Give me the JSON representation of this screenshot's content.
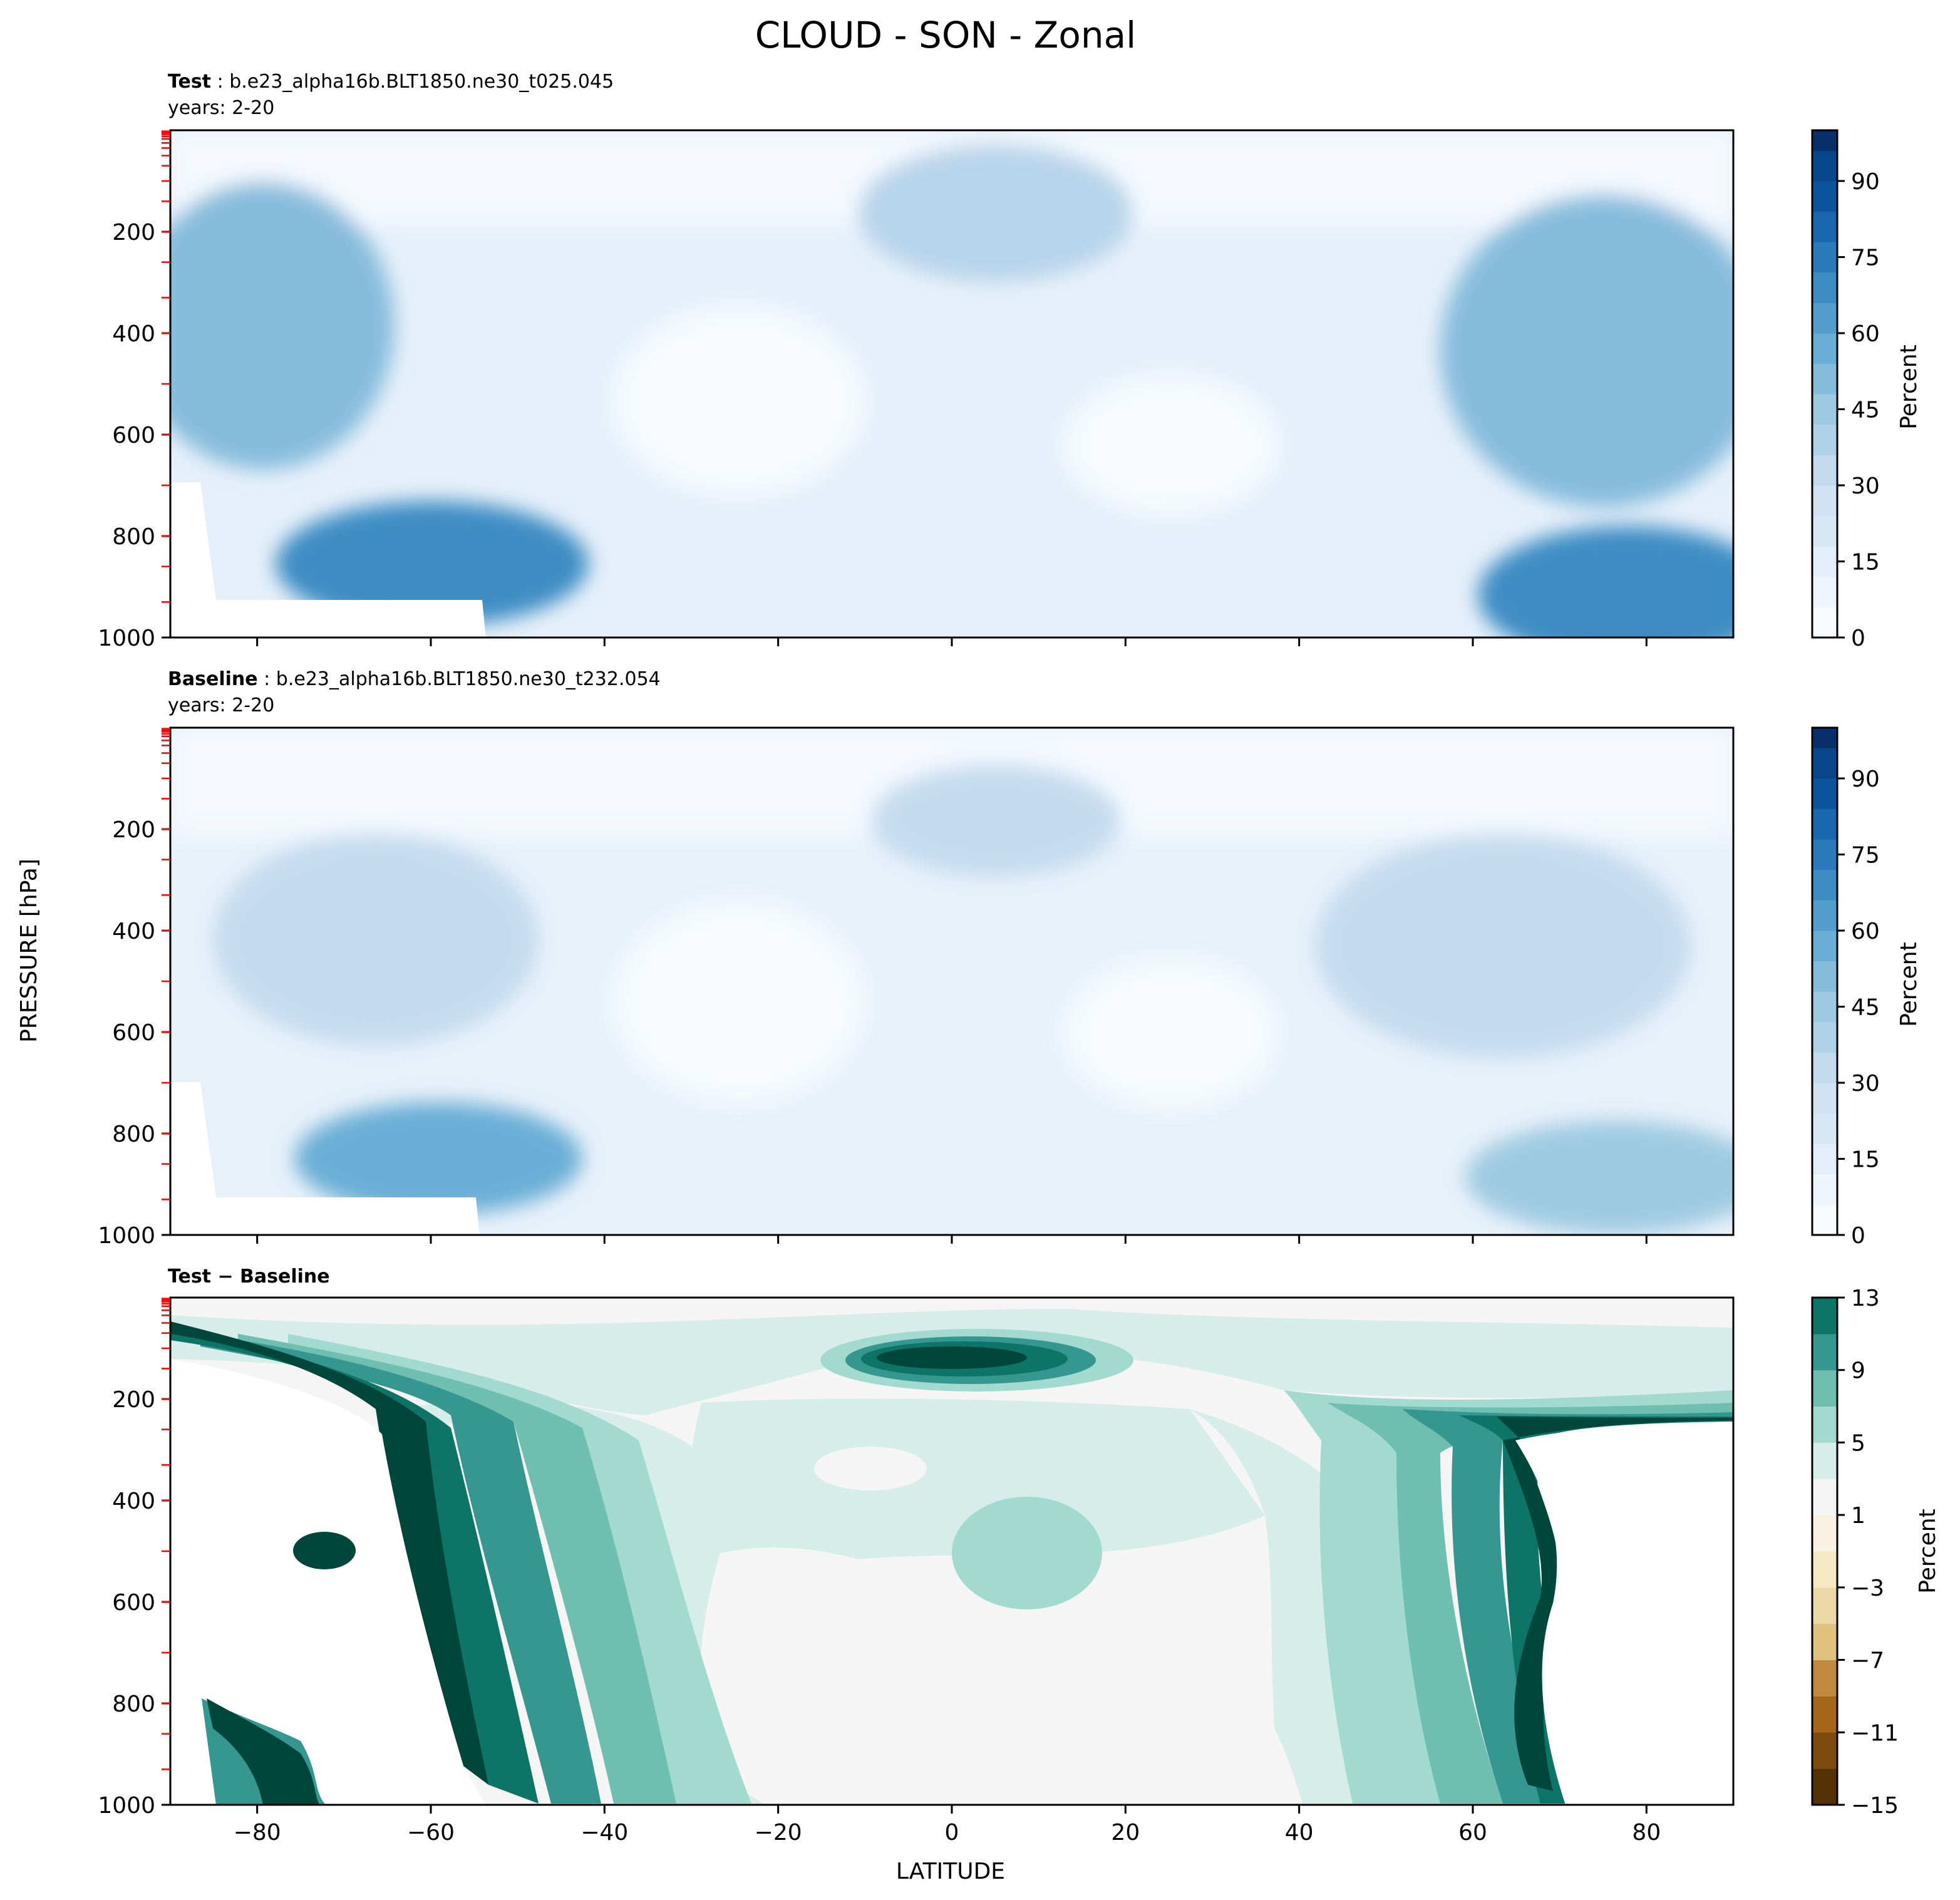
{
  "figure": {
    "title": "CLOUD - SON - Zonal",
    "ylabel_shared": "PRESSURE [hPa]",
    "xlabel": "LATITUDE"
  },
  "panels": {
    "test": {
      "label": "Test",
      "case": "b.e23_alpha16b.BLT1850.ne30_t025.045",
      "years": "years: 2-20",
      "cbar_label": "Percent"
    },
    "baseline": {
      "label": "Baseline",
      "case": "b.e23_alpha16b.BLT1850.ne30_t232.054",
      "years": "years: 2-20",
      "cbar_label": "Percent"
    },
    "diff": {
      "label": "Test − Baseline",
      "cbar_label": "Percent"
    }
  },
  "colors": {
    "blues": [
      "#f7fbff",
      "#eef5fc",
      "#e3eef9",
      "#d8e7f5",
      "#cfe1f2",
      "#c2d9ee",
      "#b0d2e8",
      "#9ecae1",
      "#86bcdc",
      "#6aaed6",
      "#539ecd",
      "#3d8dc4",
      "#2a7ab9",
      "#1967ad",
      "#0b559f",
      "#08468b",
      "#08306b"
    ],
    "diff_neg": [
      "#543005",
      "#7b4a0c",
      "#a6661a",
      "#c08a3e",
      "#dfc27d",
      "#ecd9a8",
      "#f6e8c3",
      "#f9f2e2"
    ],
    "diff_pos": [
      "#f5f5f5",
      "#d6ede9",
      "#a3dad0",
      "#6fbfb0",
      "#35978f",
      "#0f7468",
      "#01463b"
    ],
    "boundary_tick": "#ff0000"
  },
  "chart_data": [
    {
      "type": "heatmap",
      "panel": "test",
      "title": "Test : b.e23_alpha16b.BLT1850.ne30_t025.045",
      "subtitle": "years: 2-20",
      "xlabel": "",
      "ylabel": "PRESSURE [hPa]",
      "xlim": [
        -90,
        90
      ],
      "ylim": [
        1000,
        0
      ],
      "x": [
        -90,
        -85,
        -80,
        -75,
        -70,
        -65,
        -60,
        -55,
        -50,
        -45,
        -40,
        -35,
        -30,
        -25,
        -20,
        -15,
        -10,
        -5,
        0,
        5,
        10,
        15,
        20,
        25,
        30,
        35,
        40,
        45,
        50,
        55,
        60,
        65,
        70,
        75,
        80,
        85,
        90
      ],
      "y": [
        0,
        50,
        100,
        150,
        200,
        250,
        300,
        350,
        400,
        450,
        500,
        550,
        600,
        650,
        700,
        750,
        800,
        850,
        900,
        950,
        1000
      ],
      "xticks": [
        -80,
        -60,
        -40,
        -20,
        0,
        20,
        40,
        60,
        80
      ],
      "yticks": [
        200,
        400,
        600,
        800,
        1000
      ],
      "colorbar": {
        "label": "Percent",
        "ticks": [
          0,
          15,
          30,
          45,
          60,
          75,
          90
        ],
        "levels": [
          0,
          6,
          12,
          18,
          24,
          30,
          36,
          42,
          48,
          54,
          60,
          66,
          72,
          78,
          84,
          90,
          96,
          100
        ]
      },
      "features": [
        {
          "name": "upper tropical maximum",
          "lat": 5,
          "pressure": 200,
          "value": 33
        },
        {
          "name": "southern midlatitude low cloud maximum",
          "lat": -55,
          "pressure": 880,
          "value": 62
        },
        {
          "name": "arctic low cloud maximum",
          "lat": 85,
          "pressure": 975,
          "value": 78
        },
        {
          "name": "southern midlevel maximum",
          "lat": -80,
          "pressure": 380,
          "value": 42
        },
        {
          "name": "northern midlevel maximum",
          "lat": 80,
          "pressure": 400,
          "value": 43
        },
        {
          "name": "subtropical minima",
          "lat": -20,
          "pressure": 600,
          "value": 4
        }
      ]
    },
    {
      "type": "heatmap",
      "panel": "baseline",
      "title": "Baseline : b.e23_alpha16b.BLT1850.ne30_t232.054",
      "subtitle": "years: 2-20",
      "xlabel": "",
      "ylabel": "PRESSURE [hPa]",
      "xlim": [
        -90,
        90
      ],
      "ylim": [
        1000,
        0
      ],
      "xticks": [
        -80,
        -60,
        -40,
        -20,
        0,
        20,
        40,
        60,
        80
      ],
      "yticks": [
        200,
        400,
        600,
        800,
        1000
      ],
      "colorbar": {
        "label": "Percent",
        "ticks": [
          0,
          15,
          30,
          45,
          60,
          75,
          90
        ],
        "levels": [
          0,
          6,
          12,
          18,
          24,
          30,
          36,
          42,
          48,
          54,
          60,
          66,
          72,
          78,
          84,
          90,
          96,
          100
        ]
      },
      "features": [
        {
          "name": "upper tropical maximum",
          "lat": 5,
          "pressure": 200,
          "value": 27
        },
        {
          "name": "southern midlatitude low cloud maximum",
          "lat": -57,
          "pressure": 870,
          "value": 50
        },
        {
          "name": "arctic low cloud maximum",
          "lat": 85,
          "pressure": 975,
          "value": 38
        },
        {
          "name": "southern midlevel maximum",
          "lat": -70,
          "pressure": 430,
          "value": 27
        },
        {
          "name": "northern midlevel maximum",
          "lat": 65,
          "pressure": 420,
          "value": 27
        },
        {
          "name": "subtropical minima",
          "lat": -20,
          "pressure": 600,
          "value": 3
        }
      ]
    },
    {
      "type": "heatmap",
      "panel": "diff",
      "title": "Test − Baseline",
      "xlabel": "LATITUDE",
      "ylabel": "PRESSURE [hPa]",
      "xlim": [
        -90,
        90
      ],
      "ylim": [
        1000,
        0
      ],
      "xticks": [
        -80,
        -60,
        -40,
        -20,
        0,
        20,
        40,
        60,
        80
      ],
      "yticks": [
        200,
        400,
        600,
        800,
        1000
      ],
      "colorbar": {
        "label": "Percent",
        "ticks": [
          -15,
          -11,
          -7,
          -3,
          1,
          5,
          9,
          13
        ],
        "levels": [
          -15,
          -13,
          -11,
          -9,
          -7,
          -5,
          -3,
          -1,
          1,
          3,
          5,
          7,
          9,
          11,
          13
        ]
      },
      "features": [
        {
          "name": "southern high-latitude increase",
          "lat": -75,
          "pressure": 500,
          "value": 13
        },
        {
          "name": "southern midlatitude band",
          "lat": -57,
          "pressure": 600,
          "value": 11
        },
        {
          "name": "tropical upper maximum",
          "lat": 3,
          "pressure": 120,
          "value": 12
        },
        {
          "name": "northern midlatitude band",
          "lat": 62,
          "pressure": 550,
          "value": 11
        },
        {
          "name": "central equatorial column",
          "lat": 8,
          "pressure": 450,
          "value": 4
        },
        {
          "name": "subtropical near-zero",
          "lat": 10,
          "pressure": 700,
          "value": 0
        }
      ]
    }
  ]
}
